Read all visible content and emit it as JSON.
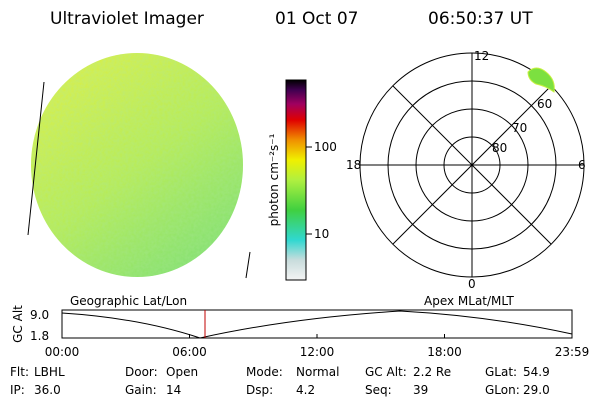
{
  "header": {
    "instrument": "Ultraviolet Imager",
    "date": "01 Oct 07",
    "time": "06:50:37 UT"
  },
  "colorbar": {
    "label": "photon cm⁻²s⁻¹",
    "ticks": [
      "100",
      "10"
    ]
  },
  "polar_plot": {
    "mlt_labels": [
      "12",
      "18",
      "6",
      "0"
    ],
    "lat_labels": [
      "80",
      "70",
      "60"
    ]
  },
  "panel_labels": {
    "left": "Geographic Lat/Lon",
    "right": "Apex MLat/MLT"
  },
  "altitude_plot": {
    "ylabel": "GC Alt",
    "yticks": [
      "9.0",
      "1.8"
    ],
    "xticks": [
      "00:00",
      "06:00",
      "12:00",
      "18:00",
      "23:59"
    ]
  },
  "info": [
    [
      {
        "label": "Flt:",
        "value": "LBHL"
      },
      {
        "label": "Door:",
        "value": "Open"
      },
      {
        "label": "Mode:",
        "value": "Normal"
      },
      {
        "label": "GC Alt:",
        "value": "2.2 Re"
      },
      {
        "label": "GLat:",
        "value": "54.9"
      }
    ],
    [
      {
        "label": "IP:",
        "value": "36.0"
      },
      {
        "label": "Gain:",
        "value": "14"
      },
      {
        "label": "Dsp:",
        "value": "4.2"
      },
      {
        "label": "Seq:",
        "value": "39"
      },
      {
        "label": "GLon:",
        "value": "29.0"
      }
    ]
  ]
}
